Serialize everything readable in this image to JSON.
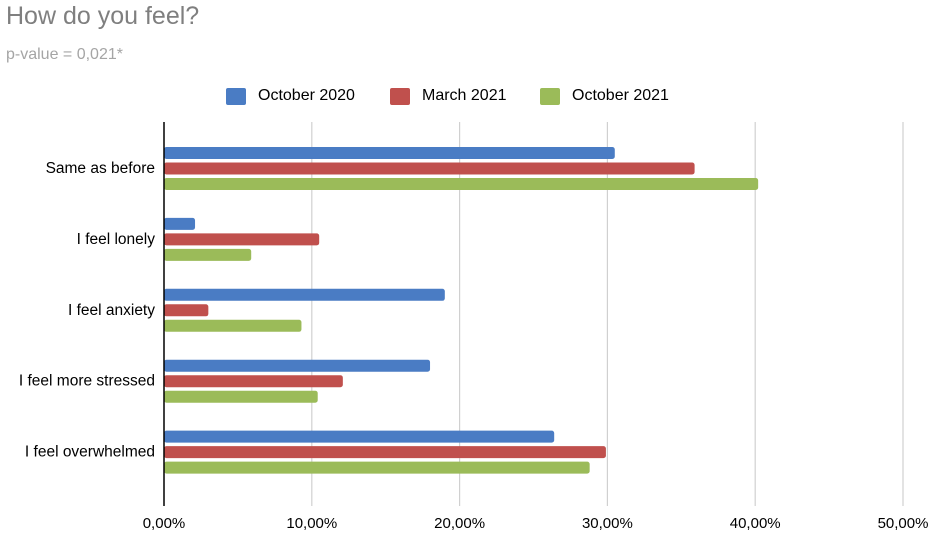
{
  "chart_data": {
    "type": "bar",
    "orientation": "horizontal",
    "title": "How do you feel?",
    "subtitle": "p-value = 0,021*",
    "categories": [
      "Same as before",
      "I feel lonely",
      "I feel anxiety",
      "I feel more stressed",
      "I feel overwhelmed"
    ],
    "series": [
      {
        "name": "October 2020",
        "color": "#4a7cc4",
        "values": [
          30.5,
          2.1,
          19.0,
          18.0,
          26.4
        ]
      },
      {
        "name": "March 2021",
        "color": "#c0504d",
        "values": [
          35.9,
          10.5,
          3.0,
          12.1,
          29.9
        ]
      },
      {
        "name": "October 2021",
        "color": "#9bbb59",
        "values": [
          40.2,
          5.9,
          9.3,
          10.4,
          28.8
        ]
      }
    ],
    "xlim": [
      0,
      50
    ],
    "xticks": [
      0,
      10,
      20,
      30,
      40,
      50
    ],
    "xtick_labels": [
      "0,00%",
      "10,00%",
      "20,00%",
      "30,00%",
      "40,00%",
      "50,00%"
    ],
    "grid": "vertical",
    "legend_position": "top"
  }
}
